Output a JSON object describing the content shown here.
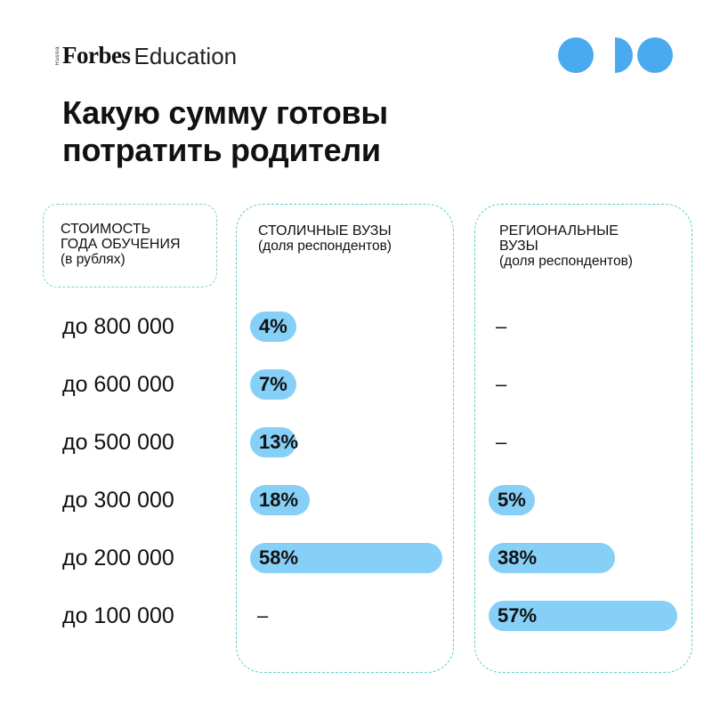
{
  "logo": {
    "tag": "Russia",
    "brand": "Forbes",
    "section": "Education"
  },
  "title": {
    "line1": "Какую сумму готовы",
    "line2": "потратить родители"
  },
  "colors": {
    "bar": "#86cff7",
    "dots": "#4aaaf0",
    "frame": "#5fcfc7"
  },
  "headers": {
    "cost": {
      "line1": "СТОИМОСТЬ",
      "line2": "ГОДА ОБУЧЕНИЯ",
      "sub": "(в рублях)"
    },
    "capital": {
      "line1": "СТОЛИЧНЫЕ ВУЗЫ",
      "sub": "(доля респондентов)"
    },
    "regional": {
      "line1": "РЕГИОНАЛЬНЫЕ",
      "line2": "ВУЗЫ",
      "sub": "(доля респондентов)"
    }
  },
  "chart_data": {
    "type": "bar",
    "categories": [
      "до 800 000",
      "до 600 000",
      "до 500 000",
      "до 300 000",
      "до 200 000",
      "до 100 000"
    ],
    "series": [
      {
        "name": "СТОЛИЧНЫЕ ВУЗЫ",
        "values": [
          4,
          7,
          13,
          18,
          58,
          null
        ],
        "labels": [
          "4%",
          "7%",
          "13%",
          "18%",
          "58%",
          "–"
        ]
      },
      {
        "name": "РЕГИОНАЛЬНЫЕ ВУЗЫ",
        "values": [
          null,
          null,
          null,
          5,
          38,
          57
        ],
        "labels": [
          "–",
          "–",
          "–",
          "5%",
          "38%",
          "57%"
        ]
      }
    ],
    "title": "Какую сумму готовы потратить родители",
    "unit": "%"
  }
}
